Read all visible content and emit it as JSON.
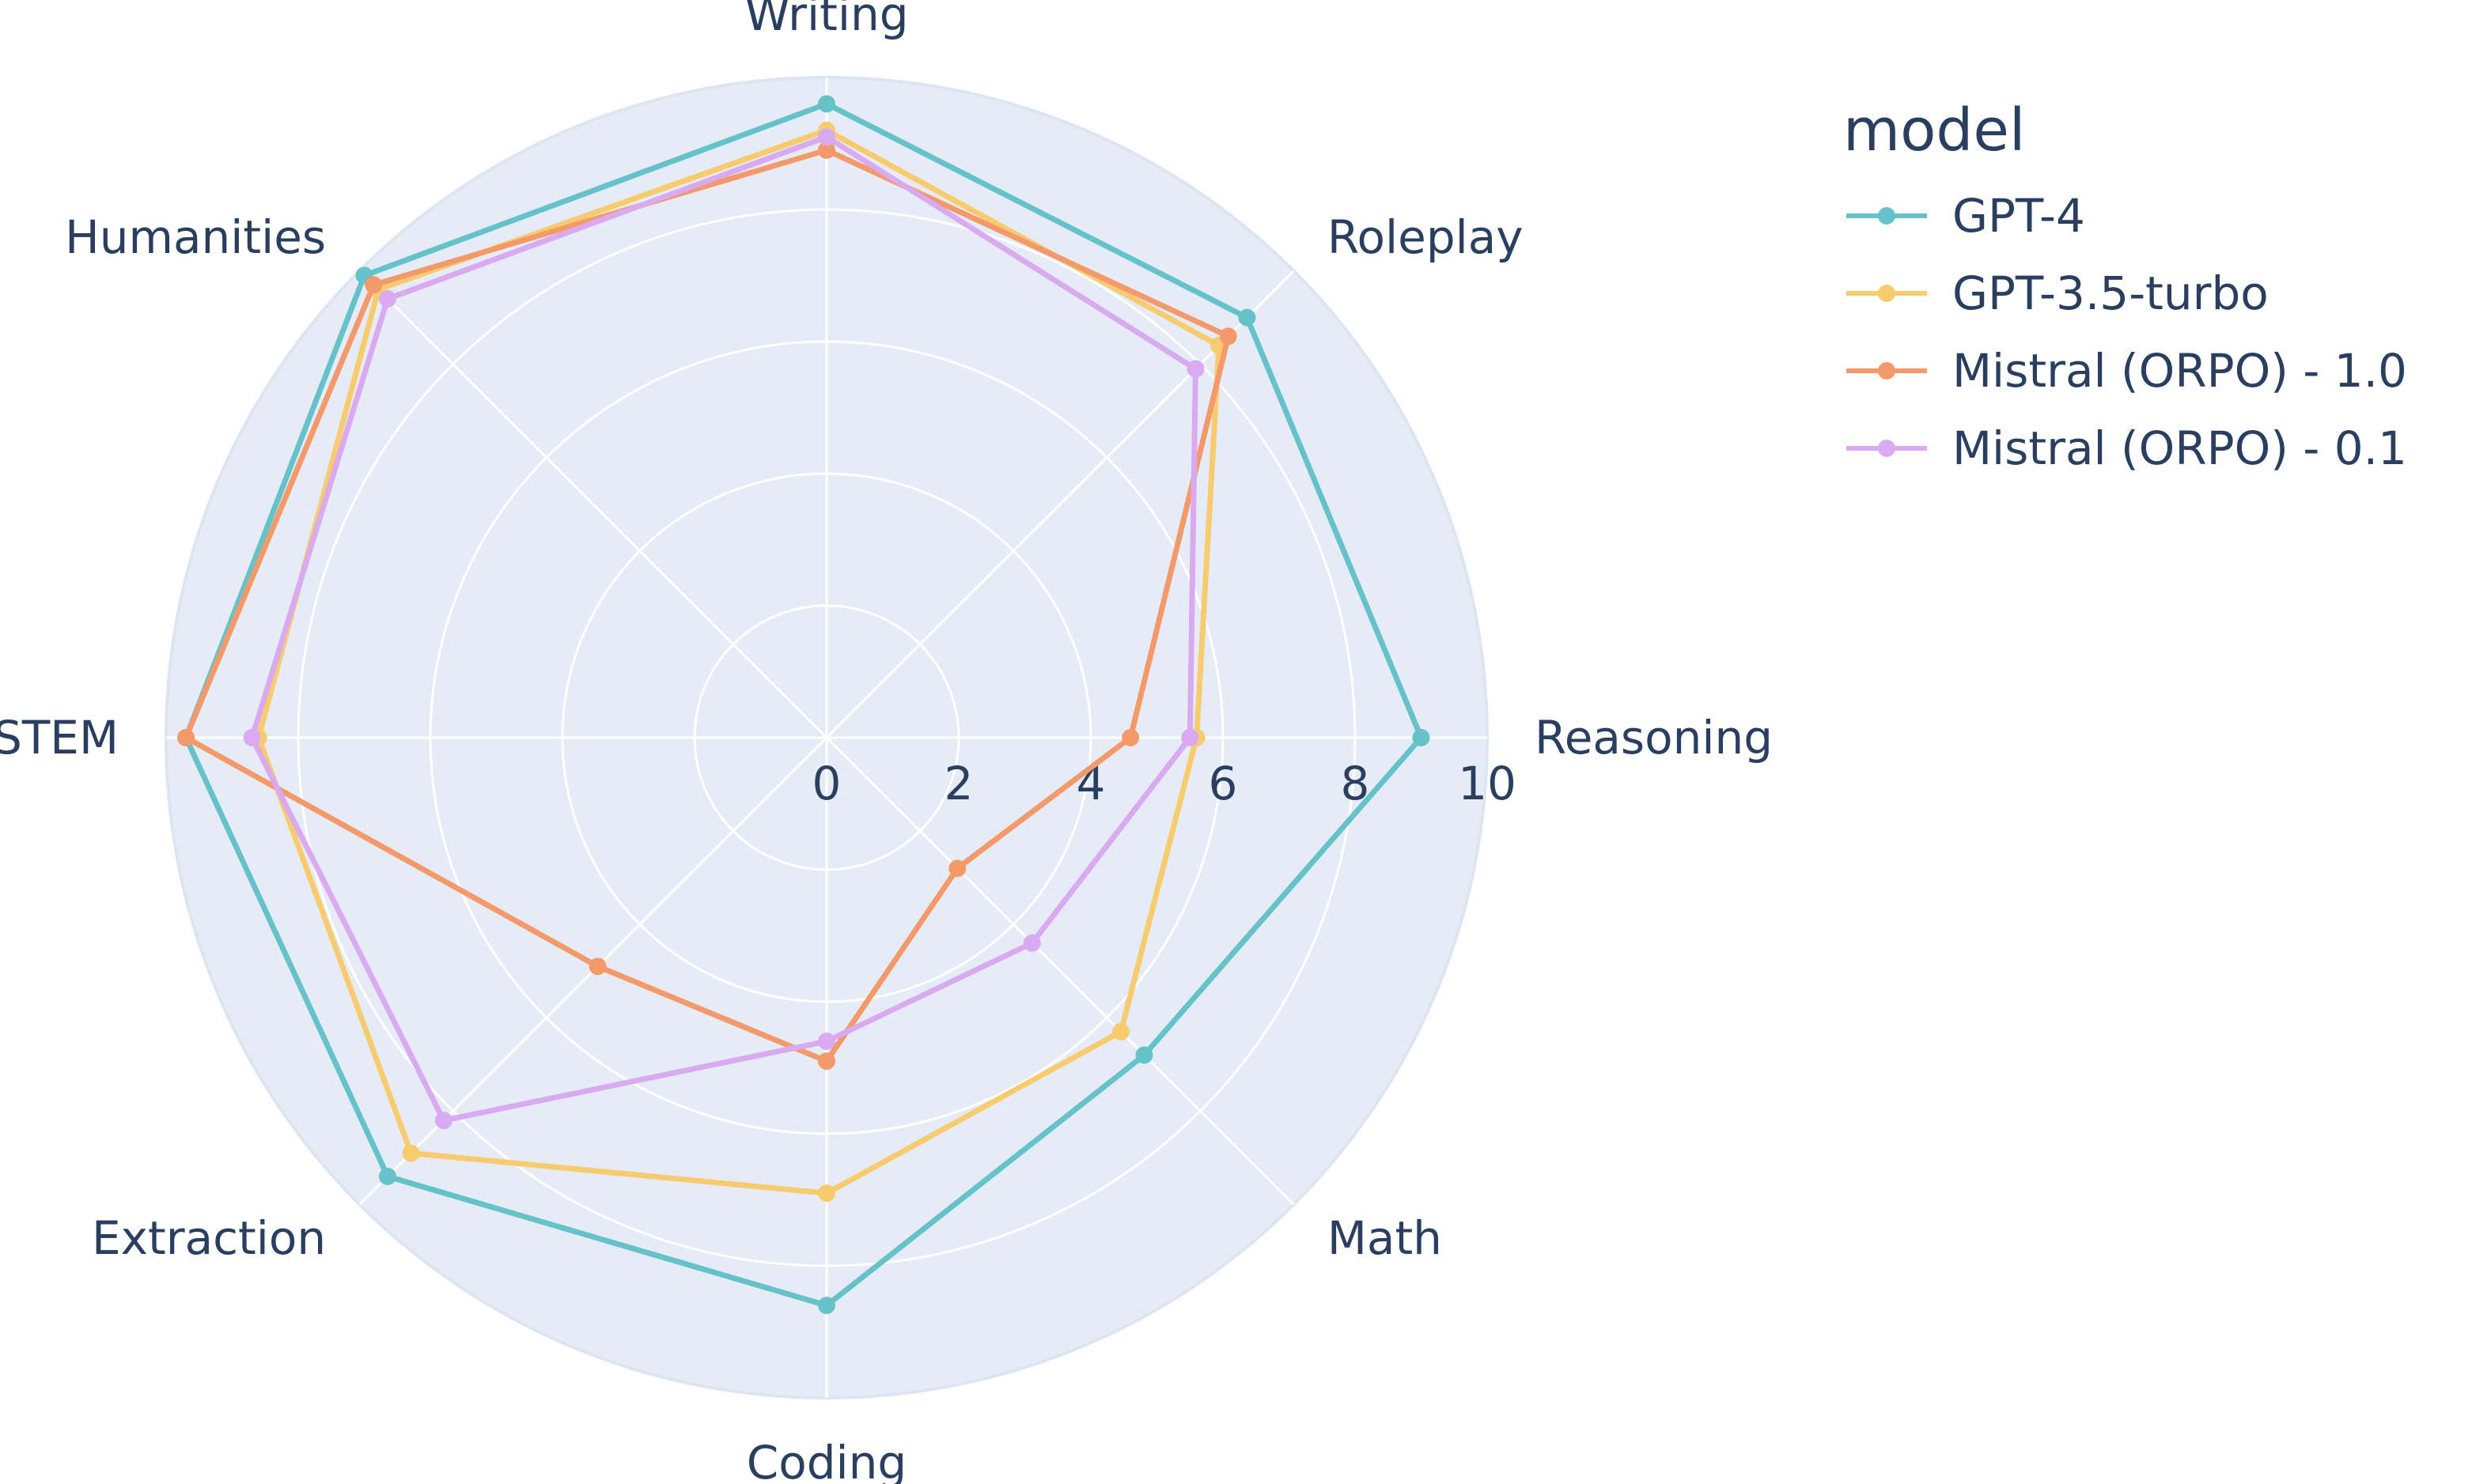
{
  "chart_data": {
    "type": "radar",
    "categories": [
      "Writing",
      "Roleplay",
      "Reasoning",
      "Math",
      "Coding",
      "Extraction",
      "STEM",
      "Humanities"
    ],
    "radial_range": [
      0,
      10
    ],
    "radial_ticks": [
      "0",
      "2",
      "4",
      "6",
      "8",
      "10"
    ],
    "legend_title": "model",
    "legend_position": "right",
    "series": [
      {
        "name": "GPT-4",
        "color": "#66c2c9",
        "values": [
          9.6,
          9.0,
          9.0,
          6.8,
          8.6,
          9.4,
          9.7,
          9.9
        ]
      },
      {
        "name": "GPT-3.5-turbo",
        "color": "#f7cb6e",
        "values": [
          9.2,
          8.4,
          5.6,
          6.3,
          6.9,
          8.9,
          8.6,
          9.6
        ]
      },
      {
        "name": "Mistral (ORPO) - 1.0",
        "color": "#f4996a",
        "values": [
          8.9,
          8.6,
          4.6,
          2.8,
          4.9,
          4.9,
          9.7,
          9.7
        ]
      },
      {
        "name": "Mistral (ORPO) - 0.1",
        "color": "#d9aaf0",
        "values": [
          9.1,
          7.9,
          5.5,
          4.4,
          4.6,
          8.2,
          8.7,
          9.4
        ]
      }
    ]
  }
}
